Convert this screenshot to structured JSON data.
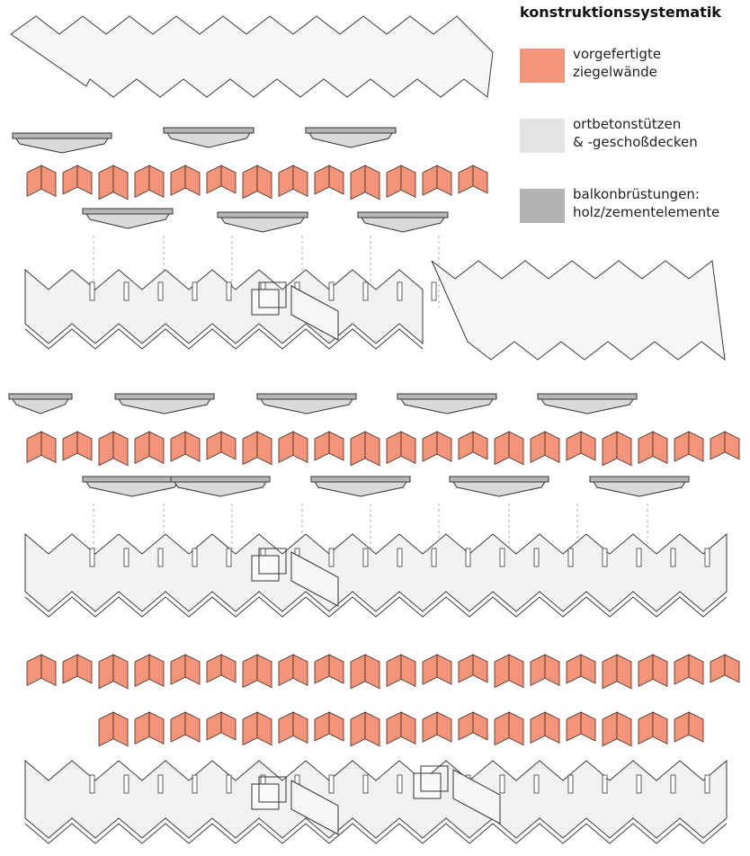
{
  "legend": {
    "title": "konstruktionssystematik",
    "items": [
      {
        "label": "vorgefertigte\nziegelwände",
        "color": "#f2957a"
      },
      {
        "label": "ortbetonstützen\n& -geschoßdecken",
        "color": "#e6e4e2"
      },
      {
        "label": "balkonbrüstungen:\nholz/zementelemente",
        "color": "#b5b3b1"
      }
    ]
  },
  "colors": {
    "slab_fill": "#f2f2f2",
    "slab_stroke": "#3a3a3a",
    "wall_fill": "#f2957a",
    "wall_stroke": "#4a2a20",
    "balcony_fill": "#b8b6b4",
    "balcony_top": "#dcdad8",
    "dash": "#8a8a8a"
  },
  "icons": [
    "stair-core-icon",
    "column-icon"
  ]
}
